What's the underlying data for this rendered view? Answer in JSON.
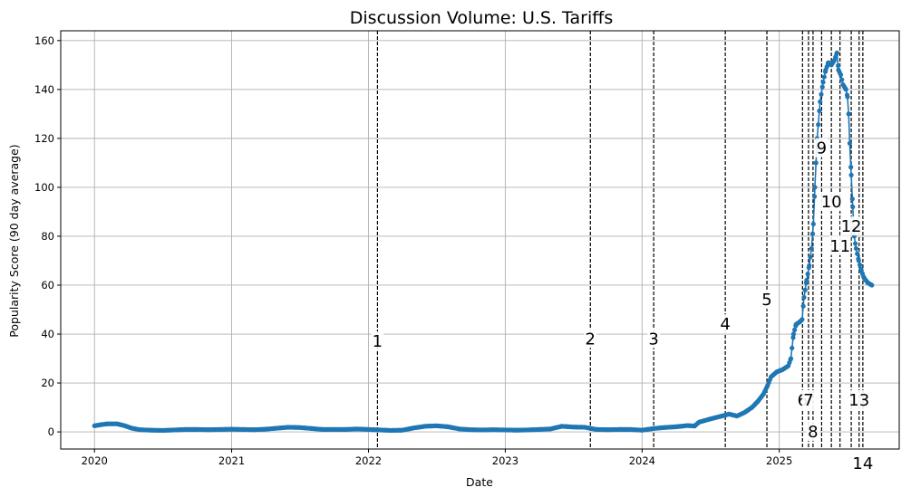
{
  "chart_data": {
    "type": "line",
    "title": "Discussion Volume: U.S. Tariffs",
    "xlabel": "Date",
    "ylabel": "Popularity Score (90 day average)",
    "xlim": [
      "2019-10-03",
      "2025-11-17"
    ],
    "ylim": [
      -7,
      164
    ],
    "grid": true,
    "colors": {
      "series": "#1f77b4",
      "event_line": "#000000",
      "grid": "#b0b0b0"
    },
    "x_ticks": [
      {
        "date": "2020-01-01",
        "label": "2020"
      },
      {
        "date": "2021-01-01",
        "label": "2021"
      },
      {
        "date": "2022-01-01",
        "label": "2022"
      },
      {
        "date": "2023-01-01",
        "label": "2023"
      },
      {
        "date": "2024-01-01",
        "label": "2024"
      },
      {
        "date": "2025-01-01",
        "label": "2025"
      }
    ],
    "y_ticks": [
      0,
      20,
      40,
      60,
      80,
      100,
      120,
      140,
      160
    ],
    "series": [
      {
        "points": [
          [
            "2020-01-01",
            2.5
          ],
          [
            "2020-01-20",
            3.0
          ],
          [
            "2020-02-05",
            3.3
          ],
          [
            "2020-03-01",
            3.3
          ],
          [
            "2020-03-20",
            2.6
          ],
          [
            "2020-04-10",
            1.5
          ],
          [
            "2020-05-01",
            0.9
          ],
          [
            "2020-06-01",
            0.7
          ],
          [
            "2020-07-01",
            0.6
          ],
          [
            "2020-08-01",
            0.8
          ],
          [
            "2020-09-01",
            1.0
          ],
          [
            "2020-10-01",
            1.0
          ],
          [
            "2020-11-01",
            0.9
          ],
          [
            "2020-12-01",
            1.0
          ],
          [
            "2021-01-01",
            1.1
          ],
          [
            "2021-02-01",
            1.0
          ],
          [
            "2021-03-01",
            0.9
          ],
          [
            "2021-04-01",
            1.1
          ],
          [
            "2021-05-01",
            1.5
          ],
          [
            "2021-06-01",
            1.9
          ],
          [
            "2021-07-01",
            1.8
          ],
          [
            "2021-08-01",
            1.4
          ],
          [
            "2021-09-01",
            1.0
          ],
          [
            "2021-10-01",
            1.0
          ],
          [
            "2021-11-01",
            1.0
          ],
          [
            "2021-12-01",
            1.2
          ],
          [
            "2022-01-01",
            1.0
          ],
          [
            "2022-02-01",
            0.8
          ],
          [
            "2022-03-01",
            0.6
          ],
          [
            "2022-04-01",
            0.7
          ],
          [
            "2022-05-01",
            1.6
          ],
          [
            "2022-06-01",
            2.3
          ],
          [
            "2022-07-01",
            2.5
          ],
          [
            "2022-08-01",
            2.1
          ],
          [
            "2022-09-01",
            1.2
          ],
          [
            "2022-10-01",
            0.9
          ],
          [
            "2022-11-01",
            0.8
          ],
          [
            "2022-12-01",
            0.9
          ],
          [
            "2023-01-01",
            0.8
          ],
          [
            "2023-02-01",
            0.7
          ],
          [
            "2023-03-01",
            0.8
          ],
          [
            "2023-04-01",
            1.0
          ],
          [
            "2023-05-01",
            1.2
          ],
          [
            "2023-06-01",
            2.3
          ],
          [
            "2023-07-01",
            2.0
          ],
          [
            "2023-08-01",
            1.9
          ],
          [
            "2023-09-01",
            1.0
          ],
          [
            "2023-10-01",
            0.9
          ],
          [
            "2023-11-01",
            1.0
          ],
          [
            "2023-12-01",
            1.0
          ],
          [
            "2024-01-01",
            0.7
          ],
          [
            "2024-02-01",
            1.4
          ],
          [
            "2024-03-01",
            1.8
          ],
          [
            "2024-04-01",
            2.1
          ],
          [
            "2024-05-01",
            2.6
          ],
          [
            "2024-05-20",
            2.4
          ],
          [
            "2024-06-01",
            4.0
          ],
          [
            "2024-07-01",
            5.3
          ],
          [
            "2024-08-01",
            6.5
          ],
          [
            "2024-08-20",
            7.3
          ],
          [
            "2024-09-10",
            6.5
          ],
          [
            "2024-10-01",
            8.0
          ],
          [
            "2024-10-20",
            10.0
          ],
          [
            "2024-11-05",
            12.5
          ],
          [
            "2024-11-20",
            15.5
          ],
          [
            "2024-12-01",
            19.0
          ],
          [
            "2024-12-10",
            22.5
          ],
          [
            "2024-12-25",
            24.5
          ],
          [
            "2025-01-10",
            25.5
          ],
          [
            "2025-01-25",
            27.0
          ],
          [
            "2025-02-01",
            30.0
          ],
          [
            "2025-02-08",
            40.0
          ],
          [
            "2025-02-15",
            44.0
          ],
          [
            "2025-02-25",
            45.0
          ],
          [
            "2025-03-03",
            46.0
          ],
          [
            "2025-03-08",
            55.0
          ],
          [
            "2025-03-15",
            62.0
          ],
          [
            "2025-03-22",
            68.0
          ],
          [
            "2025-03-28",
            75.0
          ],
          [
            "2025-04-02",
            85.0
          ],
          [
            "2025-04-06",
            100.0
          ],
          [
            "2025-04-12",
            120.0
          ],
          [
            "2025-04-20",
            135.0
          ],
          [
            "2025-04-28",
            143.0
          ],
          [
            "2025-05-05",
            148.0
          ],
          [
            "2025-05-12",
            151.0
          ],
          [
            "2025-05-20",
            150.0
          ],
          [
            "2025-05-28",
            152.0
          ],
          [
            "2025-06-04",
            155.0
          ],
          [
            "2025-06-08",
            148.0
          ],
          [
            "2025-06-14",
            146.0
          ],
          [
            "2025-06-20",
            142.0
          ],
          [
            "2025-06-28",
            140.0
          ],
          [
            "2025-07-02",
            137.0
          ],
          [
            "2025-07-05",
            130.0
          ],
          [
            "2025-07-08",
            118.0
          ],
          [
            "2025-07-12",
            105.0
          ],
          [
            "2025-07-16",
            92.0
          ],
          [
            "2025-07-20",
            80.0
          ],
          [
            "2025-07-25",
            75.0
          ],
          [
            "2025-08-01",
            70.0
          ],
          [
            "2025-08-08",
            66.0
          ],
          [
            "2025-08-15",
            63.0
          ],
          [
            "2025-08-25",
            61.0
          ],
          [
            "2025-09-05",
            60.0
          ]
        ]
      }
    ],
    "events": [
      {
        "label": "1",
        "date": "2022-01-25",
        "label_y": 37
      },
      {
        "label": "2",
        "date": "2023-08-16",
        "label_y": 38
      },
      {
        "label": "3",
        "date": "2024-02-01",
        "label_y": 38
      },
      {
        "label": "4",
        "date": "2024-08-10",
        "label_y": 44
      },
      {
        "label": "5",
        "date": "2024-11-29",
        "label_y": 54
      },
      {
        "label": "6",
        "date": "2025-03-04",
        "label_y": 13
      },
      {
        "label": "7",
        "date": "2025-03-20",
        "label_y": 13
      },
      {
        "label": "8",
        "date": "2025-04-01",
        "label_y": 0
      },
      {
        "label": "9",
        "date": "2025-04-24",
        "label_y": 116
      },
      {
        "label": "10",
        "date": "2025-05-20",
        "label_y": 94
      },
      {
        "label": "11",
        "date": "2025-06-12",
        "label_y": 76
      },
      {
        "label": "12",
        "date": "2025-07-12",
        "label_y": 84
      },
      {
        "label": "13",
        "date": "2025-08-02",
        "label_y": 13
      },
      {
        "label": "14",
        "date": "2025-08-12",
        "label_y": -13
      }
    ]
  }
}
